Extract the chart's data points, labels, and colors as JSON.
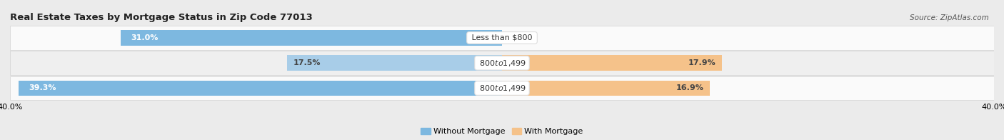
{
  "title": "Real Estate Taxes by Mortgage Status in Zip Code 77013",
  "source": "Source: ZipAtlas.com",
  "rows": [
    {
      "label": "Less than $800",
      "without_mortgage": 31.0,
      "with_mortgage": 0.0
    },
    {
      "label": "$800 to $1,499",
      "without_mortgage": 17.5,
      "with_mortgage": 17.9
    },
    {
      "label": "$800 to $1,499",
      "without_mortgage": 39.3,
      "with_mortgage": 16.9
    }
  ],
  "xlim": 40.0,
  "color_without_row0": "#7DB8E0",
  "color_without_row1": "#A8CDE8",
  "color_without_row2": "#7DB8E0",
  "color_with_row0": "#F5C28A",
  "color_with_row1": "#F5C28A",
  "color_with_row2": "#F5C28A",
  "bar_height": 0.62,
  "bg_color": "#EBEBEB",
  "row_bg_colors": [
    "#FAFAFA",
    "#EFEFEF",
    "#FAFAFA"
  ],
  "legend_label_without": "Without Mortgage",
  "legend_label_with": "With Mortgage",
  "title_fontsize": 9.5,
  "source_fontsize": 7.5,
  "axis_fontsize": 8,
  "label_fontsize": 8,
  "bar_label_fontsize": 8
}
